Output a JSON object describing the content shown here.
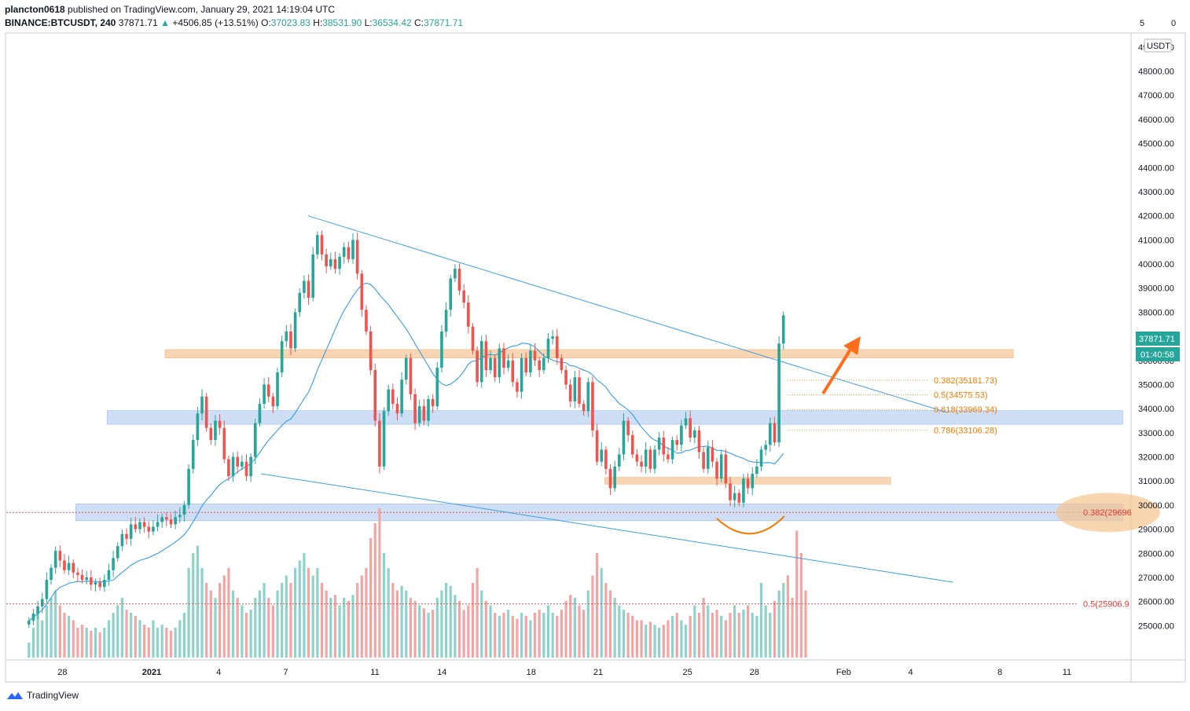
{
  "header": {
    "publisher": "plancton0618",
    "published_text": "published on TradingView.com, January 29, 2021 14:19:04 UTC",
    "symbol": "BINANCE:BTCUSDT, 240",
    "last": "37871.71",
    "change": "+4506.85 (+13.51%)",
    "o_label": "O:",
    "o": "37023.83",
    "h_label": "H:",
    "h": "38531.90",
    "l_label": "L:",
    "l": "36534.42",
    "c_label": "C:",
    "c": "37871.71"
  },
  "footer": {
    "brand": "TradingView"
  },
  "colors": {
    "up": "#26a69a",
    "down": "#ef5350",
    "up_vol": "#8ed3cb",
    "down_vol": "#f3a5a5",
    "ma": "#2196f3",
    "trend": "#3ca0e6",
    "orange_zone": "#f8cfa6",
    "blue_zone": "#c5d8f3",
    "fib_orange": "#f57c00",
    "fib_red": "#e53935",
    "arrow": "#ff6d1a"
  },
  "chart_data": {
    "type": "candlestick",
    "currency_badge": "USDT",
    "y_ticks": [
      "25000.00",
      "26000.00",
      "27000.00",
      "28000.00",
      "29000.00",
      "30000.00",
      "31000.00",
      "32000.00",
      "33000.00",
      "34000.00",
      "35000.00",
      "36000.00",
      "37000.00",
      "38000.00",
      "39000.00",
      "40000.00",
      "41000.00",
      "42000.00",
      "43000.00",
      "44000.00",
      "45000.00",
      "46000.00",
      "47000.00",
      "48000.00",
      "49000.00"
    ],
    "y_top_partial": "5",
    "y_top_partial_tail": "0",
    "ylim": [
      24600,
      51300
    ],
    "x_labels": [
      {
        "label": "28",
        "day": -4
      },
      {
        "label": "2021",
        "day": 0
      },
      {
        "label": "4",
        "day": 3
      },
      {
        "label": "7",
        "day": 6
      },
      {
        "label": "11",
        "day": 10
      },
      {
        "label": "14",
        "day": 13
      },
      {
        "label": "18",
        "day": 17
      },
      {
        "label": "21",
        "day": 20
      },
      {
        "label": "25",
        "day": 24
      },
      {
        "label": "28",
        "day": 27
      },
      {
        "label": "Feb",
        "day": 31
      },
      {
        "label": "4",
        "day": 34
      },
      {
        "label": "8",
        "day": 38
      },
      {
        "label": "11",
        "day": 41
      }
    ],
    "x_domain_days": [
      -6.6,
      43.5
    ],
    "last_price_label": "37871.71",
    "countdown_label": "01:40:58",
    "closes": [
      25200,
      25500,
      25800,
      26100,
      26900,
      27400,
      28100,
      27700,
      27300,
      27600,
      27200,
      27100,
      26900,
      27000,
      26700,
      26800,
      26600,
      26900,
      27300,
      27800,
      28300,
      28800,
      28600,
      29200,
      29000,
      29300,
      29100,
      28900,
      29100,
      29300,
      29500,
      29400,
      29200,
      29500,
      29600,
      30000,
      31500,
      32700,
      33800,
      34500,
      33200,
      32700,
      33500,
      33200,
      31900,
      31200,
      32000,
      31600,
      31800,
      31200,
      32000,
      33400,
      34200,
      35000,
      34500,
      34100,
      35500,
      36800,
      37200,
      36500,
      38000,
      38800,
      39300,
      38600,
      40400,
      41200,
      40400,
      39900,
      40200,
      39800,
      40300,
      40700,
      40200,
      41000,
      39600,
      38100,
      37200,
      35600,
      33500,
      31600,
      33900,
      34800,
      34200,
      33800,
      35200,
      36100,
      34600,
      33400,
      34100,
      33500,
      34400,
      34100,
      35700,
      37200,
      38100,
      39400,
      39800,
      38900,
      38400,
      37400,
      36400,
      35100,
      36800,
      35600,
      36100,
      35300,
      36500,
      35700,
      36000,
      35100,
      34700,
      36100,
      35500,
      36400,
      36000,
      35600,
      36100,
      36900,
      37000,
      36100,
      35600,
      35000,
      34300,
      35300,
      34200,
      33900,
      35100,
      33100,
      31800,
      32300,
      31500,
      30700,
      31600,
      32100,
      33500,
      32900,
      32100,
      31800,
      31600,
      32300,
      31500,
      32300,
      32800,
      32100,
      31900,
      32700,
      32500,
      33300,
      33600,
      32800,
      33100,
      32200,
      31500,
      32400,
      31800,
      31100,
      32100,
      30900,
      30200,
      30500,
      30100,
      31100,
      30700,
      31300,
      31600,
      32300,
      32500,
      33400,
      32600,
      36700,
      37872
    ],
    "volumes": [
      0.1,
      0.2,
      0.3,
      0.25,
      0.35,
      0.4,
      0.45,
      0.35,
      0.3,
      0.28,
      0.25,
      0.2,
      0.22,
      0.2,
      0.18,
      0.2,
      0.17,
      0.2,
      0.25,
      0.3,
      0.35,
      0.4,
      0.32,
      0.3,
      0.28,
      0.25,
      0.22,
      0.2,
      0.25,
      0.2,
      0.22,
      0.2,
      0.18,
      0.2,
      0.25,
      0.3,
      0.6,
      0.7,
      0.75,
      0.6,
      0.5,
      0.45,
      0.4,
      0.5,
      0.55,
      0.6,
      0.45,
      0.4,
      0.35,
      0.3,
      0.32,
      0.4,
      0.45,
      0.5,
      0.4,
      0.35,
      0.45,
      0.5,
      0.55,
      0.5,
      0.6,
      0.65,
      0.7,
      0.6,
      0.55,
      0.6,
      0.5,
      0.45,
      0.4,
      0.42,
      0.35,
      0.4,
      0.38,
      0.42,
      0.5,
      0.55,
      0.6,
      0.8,
      0.9,
      1.0,
      0.7,
      0.6,
      0.5,
      0.45,
      0.48,
      0.45,
      0.4,
      0.38,
      0.35,
      0.33,
      0.3,
      0.32,
      0.4,
      0.45,
      0.5,
      0.48,
      0.42,
      0.38,
      0.32,
      0.35,
      0.5,
      0.6,
      0.45,
      0.38,
      0.35,
      0.3,
      0.28,
      0.3,
      0.32,
      0.28,
      0.26,
      0.3,
      0.28,
      0.25,
      0.3,
      0.32,
      0.3,
      0.35,
      0.3,
      0.28,
      0.32,
      0.38,
      0.42,
      0.4,
      0.35,
      0.32,
      0.45,
      0.55,
      0.7,
      0.6,
      0.5,
      0.45,
      0.4,
      0.35,
      0.32,
      0.3,
      0.28,
      0.25,
      0.25,
      0.22,
      0.24,
      0.22,
      0.2,
      0.22,
      0.25,
      0.28,
      0.3,
      0.25,
      0.22,
      0.28,
      0.35,
      0.3,
      0.4,
      0.35,
      0.3,
      0.32,
      0.28,
      0.25,
      0.3,
      0.35,
      0.3,
      0.32,
      0.35,
      0.3,
      0.28,
      0.5,
      0.35,
      0.3,
      0.38,
      0.45,
      0.5,
      0.55,
      0.4,
      0.85,
      0.7,
      0.45
    ],
    "zones": [
      {
        "type": "orange",
        "y1": 36100,
        "y2": 36450,
        "x1_day": 0.6,
        "x2_day": 38.6
      },
      {
        "type": "blue",
        "y1": 33350,
        "y2": 33920,
        "x1_day": -2.0,
        "x2_day": 43.5
      },
      {
        "type": "orange",
        "y1": 30870,
        "y2": 31150,
        "x1_day": 20.3,
        "x2_day": 33.1
      },
      {
        "type": "blue",
        "y1": 29350,
        "y2": 30050,
        "x1_day": -3.4,
        "x2_day": 43.5
      }
    ],
    "trendlines": [
      {
        "day1": 7.0,
        "p1": 42000,
        "day2": 35.6,
        "p2": 33850
      },
      {
        "day1": 4.9,
        "p1": 31300,
        "day2": 35.9,
        "p2": 26800
      }
    ],
    "fib_levels": [
      {
        "label": "0.382(35181.73)",
        "price": 35181.73,
        "color": "orange"
      },
      {
        "label": "0.5(34575.53)",
        "price": 34575.53,
        "color": "orange"
      },
      {
        "label": "0.618(33969.34)",
        "price": 33969.34,
        "color": "orange"
      },
      {
        "label": "0.786(33106.28)",
        "price": 33106.28,
        "color": "orange"
      },
      {
        "label": "0.382(29696",
        "price": 29696,
        "color": "red"
      },
      {
        "label": "0.5(25906.9",
        "price": 25906.9,
        "color": "red"
      }
    ]
  }
}
